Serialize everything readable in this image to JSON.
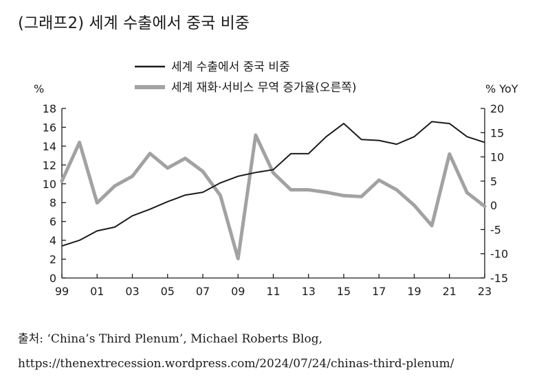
{
  "title": "(그래프2) 세계 수출에서 중국 비중",
  "source": "출처: ‘China’s Third Plenum’, Michael Roberts Blog, https://thenextrecession.wordpress.com/2024/07/24/chinas-third-plenum/",
  "chart_data": {
    "type": "line",
    "x": [
      "99",
      "00",
      "01",
      "02",
      "03",
      "04",
      "05",
      "06",
      "07",
      "08",
      "09",
      "10",
      "11",
      "12",
      "13",
      "14",
      "15",
      "16",
      "17",
      "18",
      "19",
      "20",
      "21",
      "22",
      "23"
    ],
    "x_tick_labels": [
      "99",
      "01",
      "03",
      "05",
      "07",
      "09",
      "11",
      "13",
      "15",
      "17",
      "19",
      "21",
      "23"
    ],
    "left_axis": {
      "unit": "%",
      "range": [
        0,
        18
      ],
      "ticks": [
        0,
        2,
        4,
        6,
        8,
        10,
        12,
        14,
        16,
        18
      ]
    },
    "right_axis": {
      "unit": "% YoY",
      "range": [
        -15,
        20
      ],
      "ticks": [
        -15,
        -10,
        -5,
        0,
        5,
        10,
        15,
        20
      ]
    },
    "series": [
      {
        "name": "세계 수출에서 중국 비중",
        "axis": "left",
        "color": "#1a1a1a",
        "values": [
          3.4,
          4.0,
          5.0,
          5.4,
          6.6,
          7.3,
          8.1,
          8.8,
          9.1,
          10.1,
          10.8,
          11.2,
          11.5,
          13.2,
          13.2,
          15.0,
          16.4,
          14.7,
          14.6,
          14.2,
          15.0,
          16.6,
          16.4,
          15.0,
          14.4
        ]
      },
      {
        "name": "세계 재화·서비스 무역 증가율(오른쪽)",
        "axis": "right",
        "color": "#a2a2a2",
        "values": [
          5.0,
          13.0,
          0.5,
          4.0,
          6.0,
          10.7,
          7.7,
          9.7,
          7.0,
          2.0,
          -11.0,
          14.5,
          6.7,
          3.2,
          3.2,
          2.7,
          2.0,
          1.8,
          5.2,
          3.2,
          0.0,
          -4.2,
          10.6,
          2.6,
          -0.2
        ]
      }
    ],
    "grid": false,
    "legend_position": "top-center"
  }
}
